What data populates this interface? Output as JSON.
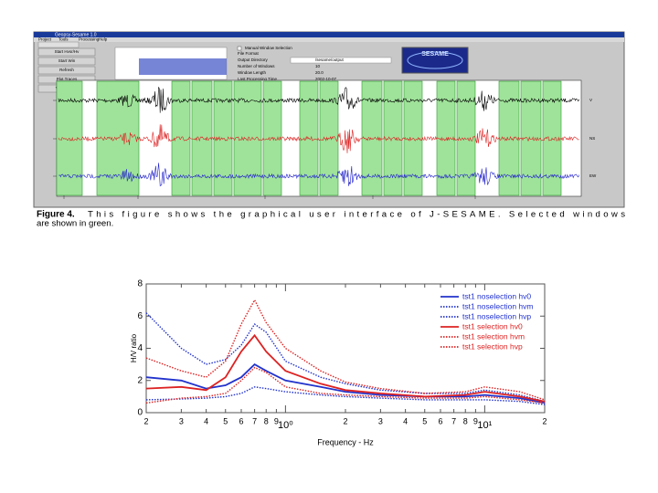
{
  "gui": {
    "window_title": "Geopsy-Sesame 1.0",
    "menu": [
      "Project",
      "Tools",
      "Processing",
      "Help"
    ],
    "buttons": [
      "Start Hvsr/Hv",
      "Start Win",
      "Refresh",
      "Plot Traces",
      "View Output"
    ],
    "checkbox": "Manual Window Selection",
    "fields": [
      {
        "label": "File Format",
        "value": ""
      },
      {
        "label": "Output Directory",
        "value": "/sesame/output"
      },
      {
        "label": "Number of Windows",
        "value": "10"
      },
      {
        "label": "Window Length",
        "value": "20.0"
      },
      {
        "label": "Last Processing Time",
        "value": "2002-10-07"
      }
    ],
    "logo": "SESAME",
    "trace_labels": [
      "V",
      "NS",
      "EW"
    ]
  },
  "caption": {
    "label": "Figure 4.",
    "text": "This figure shows the graphical user interface of J-SESAME. Selected windows are shown in green."
  },
  "chart_data": {
    "type": "line",
    "xlabel": "Frequency - Hz",
    "ylabel": "H/V ratio",
    "xscale": "log",
    "x": [
      0.2,
      0.3,
      0.4,
      0.5,
      0.6,
      0.7,
      0.8,
      1,
      1.5,
      2,
      3,
      5,
      8,
      10,
      15,
      20
    ],
    "xlim": [
      0.2,
      20
    ],
    "xticks": [
      {
        "value": 0.2,
        "label": "2"
      },
      {
        "value": 0.3,
        "label": "3"
      },
      {
        "value": 0.4,
        "label": "4"
      },
      {
        "value": 0.5,
        "label": "5"
      },
      {
        "value": 0.6,
        "label": "6"
      },
      {
        "value": 0.7,
        "label": "7"
      },
      {
        "value": 0.8,
        "label": "8"
      },
      {
        "value": 0.9,
        "label": "9"
      },
      {
        "value": 1,
        "label": "10⁰"
      },
      {
        "value": 2,
        "label": "2"
      },
      {
        "value": 3,
        "label": "3"
      },
      {
        "value": 4,
        "label": "4"
      },
      {
        "value": 5,
        "label": "5"
      },
      {
        "value": 6,
        "label": "6"
      },
      {
        "value": 7,
        "label": "7"
      },
      {
        "value": 8,
        "label": "8"
      },
      {
        "value": 9,
        "label": "9"
      },
      {
        "value": 10,
        "label": "10¹"
      },
      {
        "value": 20,
        "label": "2"
      }
    ],
    "ylim": [
      0,
      8
    ],
    "yticks": [
      0,
      2,
      4,
      6,
      8
    ],
    "legend": "upper right",
    "series": [
      {
        "name": "tst1  noselection  hv0",
        "color": "#2233cc",
        "dash": "solid",
        "values": [
          2.2,
          2.0,
          1.5,
          1.7,
          2.2,
          3.0,
          2.6,
          2.0,
          1.6,
          1.3,
          1.1,
          1.0,
          1.0,
          1.1,
          0.9,
          0.6
        ]
      },
      {
        "name": "tst1  noselection  hvm",
        "color": "#2233cc",
        "dash": "dotted",
        "values": [
          0.8,
          0.85,
          0.9,
          1.0,
          1.2,
          1.6,
          1.5,
          1.3,
          1.1,
          1.0,
          0.9,
          0.8,
          0.8,
          0.8,
          0.7,
          0.5
        ]
      },
      {
        "name": "tst1  noselection  hvp",
        "color": "#2233cc",
        "dash": "dotted",
        "values": [
          6.2,
          4.0,
          3.0,
          3.3,
          4.2,
          5.5,
          5.0,
          3.2,
          2.2,
          1.8,
          1.4,
          1.2,
          1.2,
          1.4,
          1.1,
          0.7
        ]
      },
      {
        "name": "tst1  selection  hv0",
        "color": "#dd2222",
        "dash": "solid",
        "values": [
          1.5,
          1.6,
          1.4,
          2.2,
          3.8,
          4.8,
          3.8,
          2.6,
          1.8,
          1.4,
          1.2,
          1.0,
          1.1,
          1.3,
          1.0,
          0.7
        ]
      },
      {
        "name": "tst1  selection  hvm",
        "color": "#dd2222",
        "dash": "dotted",
        "values": [
          0.6,
          0.9,
          1.0,
          1.2,
          2.0,
          2.8,
          2.5,
          1.6,
          1.2,
          1.1,
          1.0,
          0.9,
          0.9,
          1.0,
          0.8,
          0.6
        ]
      },
      {
        "name": "tst1  selection  hvp",
        "color": "#dd2222",
        "dash": "dotted",
        "values": [
          3.4,
          2.6,
          2.2,
          3.2,
          5.5,
          7.0,
          5.6,
          4.0,
          2.6,
          1.9,
          1.5,
          1.2,
          1.3,
          1.6,
          1.3,
          0.8
        ]
      }
    ]
  }
}
